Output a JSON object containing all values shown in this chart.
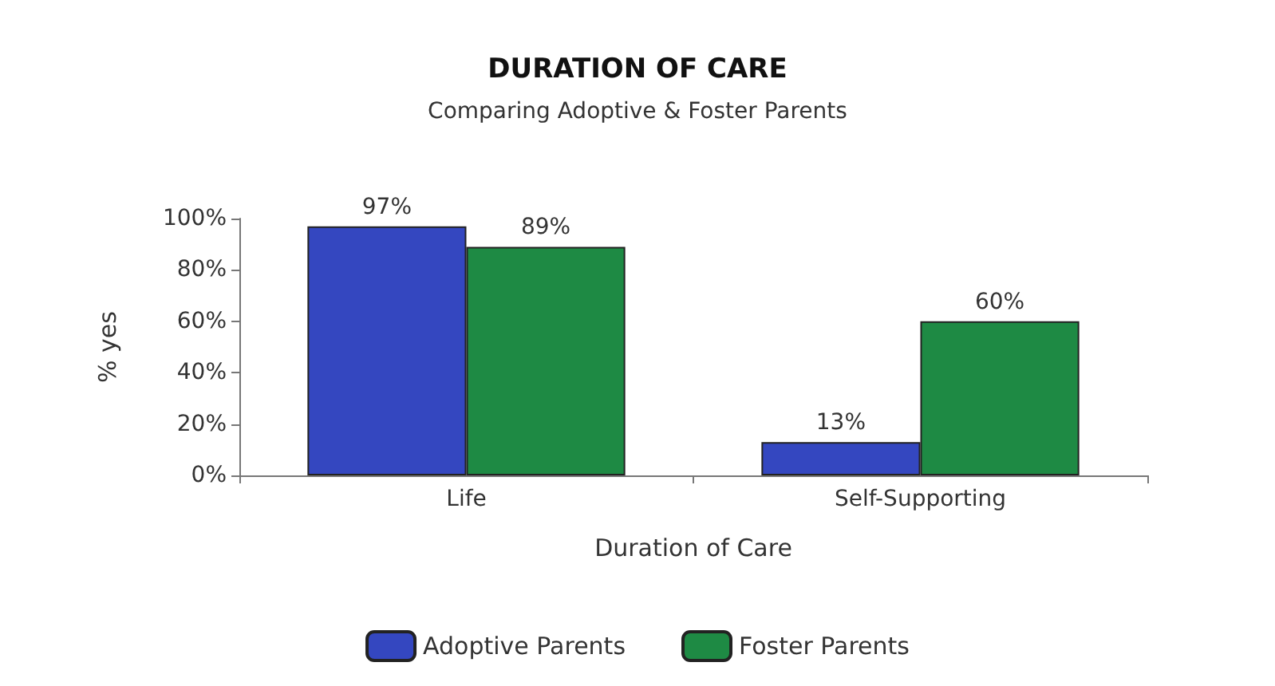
{
  "chart_data": {
    "type": "bar",
    "title": "DURATION OF CARE",
    "subtitle": "Comparing Adoptive & Foster Parents",
    "xlabel": "Duration of Care",
    "ylabel": "% yes",
    "categories": [
      "Life",
      "Self-Supporting"
    ],
    "series": [
      {
        "name": "Adoptive Parents",
        "color": "#3447c0",
        "values": [
          97,
          13
        ],
        "value_labels": [
          "97%",
          "13%"
        ]
      },
      {
        "name": "Foster Parents",
        "color": "#1e8a44",
        "values": [
          89,
          60
        ],
        "value_labels": [
          "89%",
          "60%"
        ]
      }
    ],
    "ylim": [
      0,
      100
    ],
    "yticks": [
      {
        "value": 0,
        "label": "0%"
      },
      {
        "value": 20,
        "label": "20%"
      },
      {
        "value": 40,
        "label": "40%"
      },
      {
        "value": 60,
        "label": "60%"
      },
      {
        "value": 80,
        "label": "80%"
      },
      {
        "value": 100,
        "label": "100%"
      }
    ],
    "grid": false,
    "legend": "bottom"
  }
}
